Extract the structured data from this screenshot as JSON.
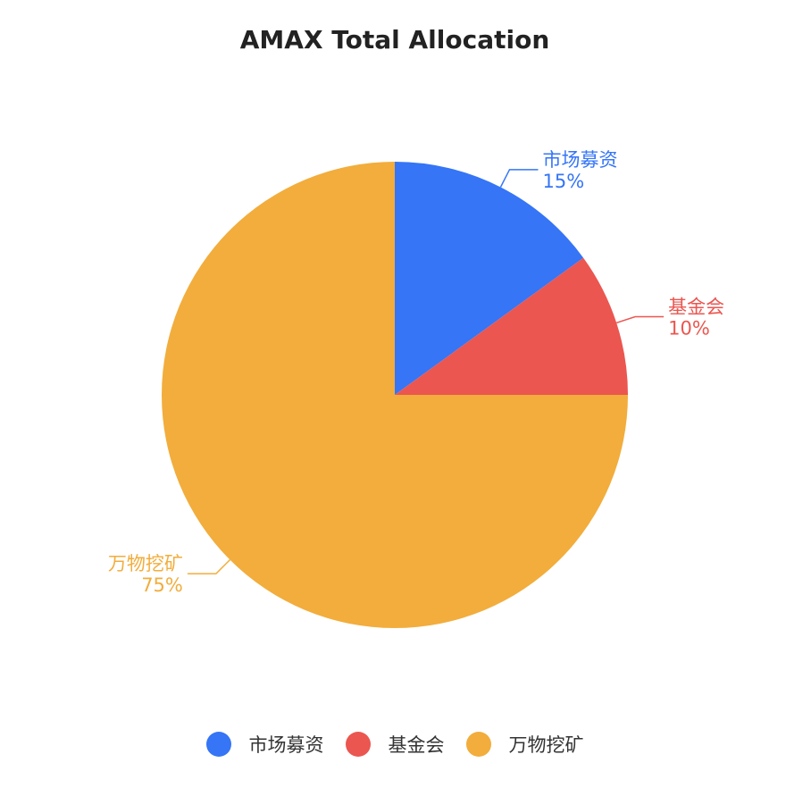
{
  "chart_data": {
    "type": "pie",
    "title": "AMAX Total Allocation",
    "slices": [
      {
        "label": "市场募资",
        "value": 15,
        "percent_label": "15%",
        "color": "#3575F6"
      },
      {
        "label": "基金会",
        "value": 10,
        "percent_label": "10%",
        "color": "#EB5650"
      },
      {
        "label": "万物挖矿",
        "value": 75,
        "percent_label": "75%",
        "color": "#F2AD3C"
      }
    ],
    "legend_position": "bottom"
  }
}
